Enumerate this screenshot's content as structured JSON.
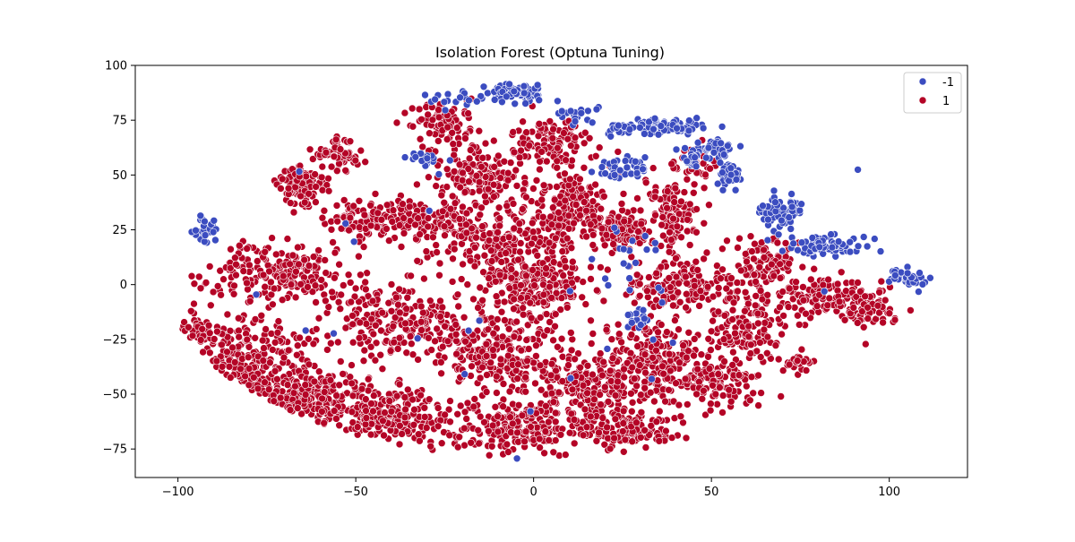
{
  "chart_data": {
    "type": "scatter",
    "title": "Isolation Forest (Optuna Tuning)",
    "xlabel": "",
    "ylabel": "",
    "xlim": [
      -112,
      122
    ],
    "ylim": [
      -88,
      100
    ],
    "xticks": [
      -100,
      -50,
      0,
      50,
      100
    ],
    "yticks": [
      -75,
      -50,
      -25,
      0,
      25,
      50,
      75,
      100
    ],
    "xtick_labels": [
      "−100",
      "−50",
      "0",
      "50",
      "100"
    ],
    "ytick_labels": [
      "−75",
      "−50",
      "−25",
      "0",
      "25",
      "50",
      "75",
      "100"
    ],
    "grid": false,
    "legend_position": "top-right",
    "legend": [
      {
        "label": "-1",
        "color": "#3b4cc0"
      },
      {
        "label": "1",
        "color": "#b40426"
      }
    ],
    "series": [
      {
        "name": "-1",
        "color": "#3b4cc0",
        "clusters": [
          {
            "cx": -5,
            "cy": 88,
            "rx": 7,
            "ry": 4,
            "n": 70
          },
          {
            "cx": -22,
            "cy": 85,
            "rx": 6,
            "ry": 3,
            "n": 20
          },
          {
            "cx": 12,
            "cy": 78,
            "rx": 5,
            "ry": 3,
            "n": 18
          },
          {
            "cx": 37,
            "cy": 72,
            "rx": 9,
            "ry": 3,
            "n": 70
          },
          {
            "cx": 23,
            "cy": 70,
            "rx": 4,
            "ry": 3,
            "n": 20
          },
          {
            "cx": 50,
            "cy": 62,
            "rx": 6,
            "ry": 4,
            "n": 40
          },
          {
            "cx": 55,
            "cy": 50,
            "rx": 3,
            "ry": 7,
            "n": 40
          },
          {
            "cx": 25,
            "cy": 53,
            "rx": 6,
            "ry": 4,
            "n": 40
          },
          {
            "cx": 44,
            "cy": 57,
            "rx": 3,
            "ry": 3,
            "n": 15
          },
          {
            "cx": 70,
            "cy": 33,
            "rx": 6,
            "ry": 6,
            "n": 70
          },
          {
            "cx": 82,
            "cy": 18,
            "rx": 9,
            "ry": 4,
            "n": 70
          },
          {
            "cx": 105,
            "cy": 3,
            "rx": 5,
            "ry": 3,
            "n": 45
          },
          {
            "cx": -92,
            "cy": 26,
            "rx": 3,
            "ry": 6,
            "n": 30
          },
          {
            "cx": -30,
            "cy": 57,
            "rx": 4,
            "ry": 3,
            "n": 18
          },
          {
            "cx": 30,
            "cy": -15,
            "rx": 3,
            "ry": 4,
            "n": 15
          },
          {
            "cx": 30,
            "cy": 5,
            "rx": 8,
            "ry": 25,
            "n": 20
          },
          {
            "cx": 0,
            "cy": 0,
            "rx": 100,
            "ry": 80,
            "n": 25
          }
        ]
      },
      {
        "name": "1",
        "color": "#b40426",
        "clusters": [
          {
            "cx": -80,
            "cy": -40,
            "rx": 15,
            "ry": 20,
            "n": 260
          },
          {
            "cx": -95,
            "cy": -22,
            "rx": 6,
            "ry": 5,
            "n": 40
          },
          {
            "cx": -65,
            "cy": 45,
            "rx": 6,
            "ry": 8,
            "n": 110
          },
          {
            "cx": -55,
            "cy": 60,
            "rx": 6,
            "ry": 7,
            "n": 70
          },
          {
            "cx": -48,
            "cy": 30,
            "rx": 8,
            "ry": 6,
            "n": 100
          },
          {
            "cx": -70,
            "cy": 5,
            "rx": 15,
            "ry": 12,
            "n": 210
          },
          {
            "cx": -60,
            "cy": -50,
            "rx": 12,
            "ry": 12,
            "n": 180
          },
          {
            "cx": -40,
            "cy": -15,
            "rx": 15,
            "ry": 15,
            "n": 210
          },
          {
            "cx": -40,
            "cy": -60,
            "rx": 15,
            "ry": 12,
            "n": 210
          },
          {
            "cx": -30,
            "cy": 30,
            "rx": 12,
            "ry": 8,
            "n": 130
          },
          {
            "cx": -25,
            "cy": 75,
            "rx": 8,
            "ry": 8,
            "n": 90
          },
          {
            "cx": -15,
            "cy": 50,
            "rx": 10,
            "ry": 12,
            "n": 160
          },
          {
            "cx": -10,
            "cy": 20,
            "rx": 15,
            "ry": 10,
            "n": 170
          },
          {
            "cx": 0,
            "cy": 0,
            "rx": 15,
            "ry": 12,
            "n": 230
          },
          {
            "cx": -10,
            "cy": -30,
            "rx": 15,
            "ry": 15,
            "n": 240
          },
          {
            "cx": -5,
            "cy": -65,
            "rx": 15,
            "ry": 10,
            "n": 210
          },
          {
            "cx": 15,
            "cy": -45,
            "rx": 12,
            "ry": 15,
            "n": 200
          },
          {
            "cx": 10,
            "cy": 35,
            "rx": 10,
            "ry": 15,
            "n": 170
          },
          {
            "cx": 5,
            "cy": 65,
            "rx": 8,
            "ry": 10,
            "n": 100
          },
          {
            "cx": 25,
            "cy": 25,
            "rx": 8,
            "ry": 8,
            "n": 100
          },
          {
            "cx": 40,
            "cy": 35,
            "rx": 6,
            "ry": 15,
            "n": 110
          },
          {
            "cx": 40,
            "cy": 0,
            "rx": 12,
            "ry": 10,
            "n": 150
          },
          {
            "cx": 35,
            "cy": -35,
            "rx": 12,
            "ry": 15,
            "n": 200
          },
          {
            "cx": 25,
            "cy": -65,
            "rx": 12,
            "ry": 8,
            "n": 150
          },
          {
            "cx": 50,
            "cy": -45,
            "rx": 10,
            "ry": 10,
            "n": 110
          },
          {
            "cx": 60,
            "cy": -20,
            "rx": 10,
            "ry": 20,
            "n": 170
          },
          {
            "cx": 65,
            "cy": 10,
            "rx": 8,
            "ry": 10,
            "n": 90
          },
          {
            "cx": 80,
            "cy": -5,
            "rx": 10,
            "ry": 8,
            "n": 110
          },
          {
            "cx": 95,
            "cy": -10,
            "rx": 7,
            "ry": 8,
            "n": 80
          },
          {
            "cx": 45,
            "cy": 55,
            "rx": 5,
            "ry": 5,
            "n": 40
          },
          {
            "cx": 75,
            "cy": -35,
            "rx": 4,
            "ry": 4,
            "n": 20
          }
        ]
      }
    ]
  }
}
